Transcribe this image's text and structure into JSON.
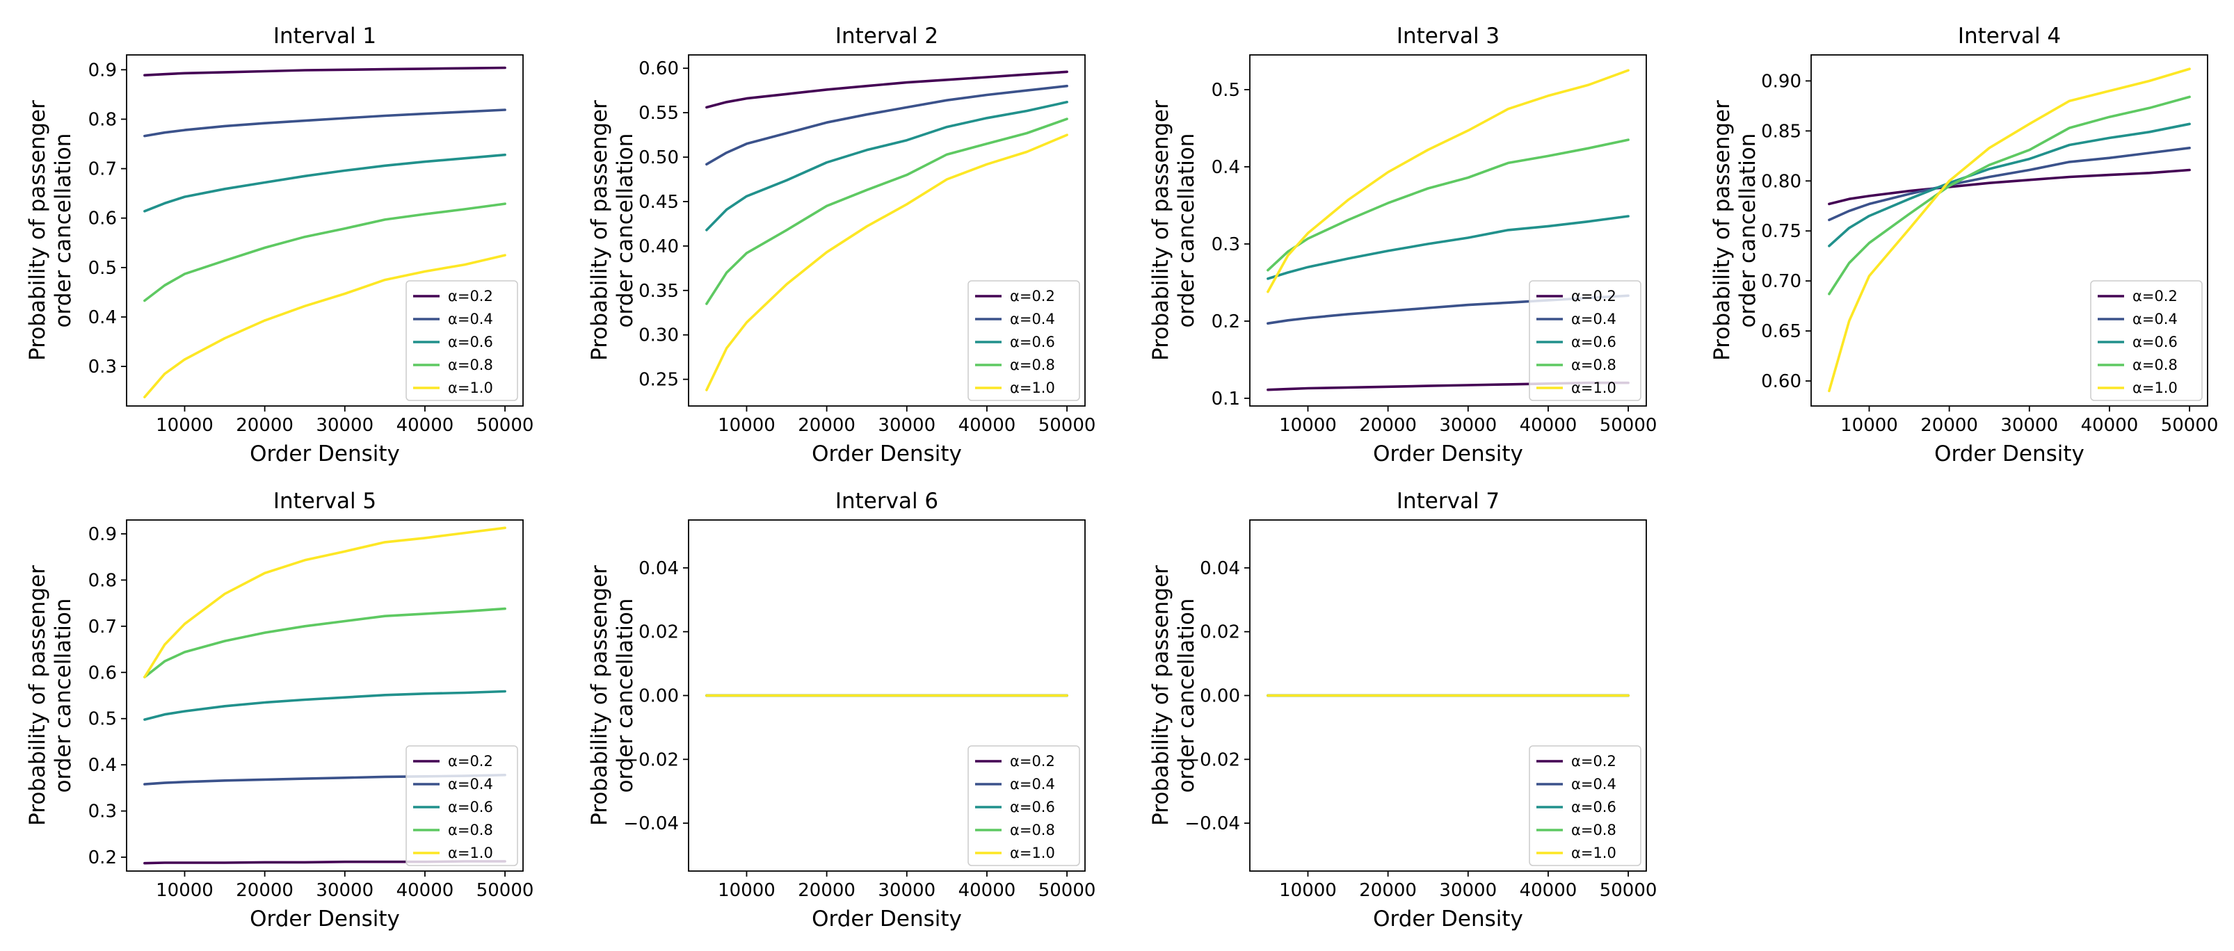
{
  "figure": {
    "xlabel": "Order Density",
    "ylabel_line1": "Probability of passenger",
    "ylabel_line2": "order cancellation"
  },
  "chart_data": [
    {
      "type": "line",
      "title": "Interval 1",
      "xlabel": "Order Density",
      "ylabel": "Probability of passenger order cancellation",
      "xlim": [
        2750,
        52250
      ],
      "ylim": [
        0.22,
        0.93
      ],
      "xticks": [
        10000,
        20000,
        30000,
        40000,
        50000
      ],
      "xtick_labels": [
        "10000",
        "20000",
        "30000",
        "40000",
        "50000"
      ],
      "yticks": [
        0.3,
        0.4,
        0.5,
        0.6,
        0.7,
        0.8,
        0.9
      ],
      "ytick_labels": [
        "0.3",
        "0.4",
        "0.5",
        "0.6",
        "0.7",
        "0.8",
        "0.9"
      ],
      "x": [
        5000,
        7500,
        10000,
        15000,
        20000,
        25000,
        30000,
        35000,
        40000,
        45000,
        50000
      ],
      "series": [
        {
          "name": "α=0.2",
          "color": "#440154",
          "values": [
            0.889,
            0.891,
            0.893,
            0.895,
            0.897,
            0.899,
            0.9,
            0.901,
            0.902,
            0.903,
            0.904
          ]
        },
        {
          "name": "α=0.4",
          "color": "#3b528b",
          "values": [
            0.766,
            0.773,
            0.778,
            0.786,
            0.792,
            0.797,
            0.802,
            0.807,
            0.811,
            0.815,
            0.819
          ]
        },
        {
          "name": "α=0.6",
          "color": "#21918c",
          "values": [
            0.614,
            0.63,
            0.643,
            0.659,
            0.672,
            0.685,
            0.696,
            0.706,
            0.714,
            0.721,
            0.728
          ]
        },
        {
          "name": "α=0.8",
          "color": "#5ec962",
          "values": [
            0.433,
            0.464,
            0.487,
            0.514,
            0.54,
            0.562,
            0.579,
            0.597,
            0.608,
            0.618,
            0.629
          ]
        },
        {
          "name": "α=1.0",
          "color": "#fde725",
          "values": [
            0.238,
            0.285,
            0.314,
            0.357,
            0.393,
            0.422,
            0.447,
            0.475,
            0.492,
            0.506,
            0.525
          ]
        }
      ],
      "legend_position": "lower right"
    },
    {
      "type": "line",
      "title": "Interval 2",
      "xlabel": "Order Density",
      "ylabel": "Probability of passenger order cancellation",
      "xlim": [
        2750,
        52250
      ],
      "ylim": [
        0.22,
        0.615
      ],
      "xticks": [
        10000,
        20000,
        30000,
        40000,
        50000
      ],
      "xtick_labels": [
        "10000",
        "20000",
        "30000",
        "40000",
        "50000"
      ],
      "yticks": [
        0.25,
        0.3,
        0.35,
        0.4,
        0.45,
        0.5,
        0.55,
        0.6
      ],
      "ytick_labels": [
        "0.25",
        "0.30",
        "0.35",
        "0.40",
        "0.45",
        "0.50",
        "0.55",
        "0.60"
      ],
      "x": [
        5000,
        7500,
        10000,
        15000,
        20000,
        25000,
        30000,
        35000,
        40000,
        45000,
        50000
      ],
      "series": [
        {
          "name": "α=0.2",
          "color": "#440154",
          "values": [
            0.556,
            0.562,
            0.566,
            0.571,
            0.576,
            0.58,
            0.584,
            0.587,
            0.59,
            0.593,
            0.596
          ]
        },
        {
          "name": "α=0.4",
          "color": "#3b528b",
          "values": [
            0.492,
            0.505,
            0.515,
            0.527,
            0.539,
            0.548,
            0.556,
            0.564,
            0.57,
            0.575,
            0.58
          ]
        },
        {
          "name": "α=0.6",
          "color": "#21918c",
          "values": [
            0.418,
            0.441,
            0.456,
            0.474,
            0.494,
            0.508,
            0.519,
            0.534,
            0.544,
            0.552,
            0.562
          ]
        },
        {
          "name": "α=0.8",
          "color": "#5ec962",
          "values": [
            0.335,
            0.37,
            0.392,
            0.418,
            0.445,
            0.463,
            0.48,
            0.503,
            0.515,
            0.527,
            0.543
          ]
        },
        {
          "name": "α=1.0",
          "color": "#fde725",
          "values": [
            0.238,
            0.285,
            0.314,
            0.357,
            0.393,
            0.422,
            0.447,
            0.475,
            0.492,
            0.506,
            0.525
          ]
        }
      ],
      "legend_position": "lower right"
    },
    {
      "type": "line",
      "title": "Interval 3",
      "xlabel": "Order Density",
      "ylabel": "Probability of passenger order cancellation",
      "xlim": [
        2750,
        52250
      ],
      "ylim": [
        0.09,
        0.545
      ],
      "xticks": [
        10000,
        20000,
        30000,
        40000,
        50000
      ],
      "xtick_labels": [
        "10000",
        "20000",
        "30000",
        "40000",
        "50000"
      ],
      "yticks": [
        0.1,
        0.2,
        0.3,
        0.4,
        0.5
      ],
      "ytick_labels": [
        "0.1",
        "0.2",
        "0.3",
        "0.4",
        "0.5"
      ],
      "x": [
        5000,
        7500,
        10000,
        15000,
        20000,
        25000,
        30000,
        35000,
        40000,
        45000,
        50000
      ],
      "series": [
        {
          "name": "α=0.2",
          "color": "#440154",
          "values": [
            0.111,
            0.112,
            0.113,
            0.114,
            0.115,
            0.116,
            0.117,
            0.118,
            0.119,
            0.12,
            0.12
          ]
        },
        {
          "name": "α=0.4",
          "color": "#3b528b",
          "values": [
            0.197,
            0.201,
            0.204,
            0.209,
            0.213,
            0.217,
            0.221,
            0.224,
            0.227,
            0.23,
            0.233
          ]
        },
        {
          "name": "α=0.6",
          "color": "#21918c",
          "values": [
            0.255,
            0.263,
            0.27,
            0.281,
            0.291,
            0.3,
            0.308,
            0.318,
            0.323,
            0.329,
            0.336
          ]
        },
        {
          "name": "α=0.8",
          "color": "#5ec962",
          "values": [
            0.266,
            0.29,
            0.307,
            0.331,
            0.353,
            0.372,
            0.386,
            0.405,
            0.414,
            0.424,
            0.435
          ]
        },
        {
          "name": "α=1.0",
          "color": "#fde725",
          "values": [
            0.238,
            0.285,
            0.314,
            0.357,
            0.393,
            0.422,
            0.447,
            0.475,
            0.492,
            0.506,
            0.525
          ]
        }
      ],
      "legend_position": "lower right"
    },
    {
      "type": "line",
      "title": "Interval 4",
      "xlabel": "Order Density",
      "ylabel": "Probability of passenger order cancellation",
      "xlim": [
        2750,
        52250
      ],
      "ylim": [
        0.575,
        0.926
      ],
      "xticks": [
        10000,
        20000,
        30000,
        40000,
        50000
      ],
      "xtick_labels": [
        "10000",
        "20000",
        "30000",
        "40000",
        "50000"
      ],
      "yticks": [
        0.6,
        0.65,
        0.7,
        0.75,
        0.8,
        0.85,
        0.9
      ],
      "ytick_labels": [
        "0.60",
        "0.65",
        "0.70",
        "0.75",
        "0.80",
        "0.85",
        "0.90"
      ],
      "x": [
        5000,
        7500,
        10000,
        15000,
        20000,
        25000,
        30000,
        35000,
        40000,
        45000,
        50000
      ],
      "series": [
        {
          "name": "α=0.2",
          "color": "#440154",
          "values": [
            0.777,
            0.782,
            0.785,
            0.79,
            0.794,
            0.798,
            0.801,
            0.804,
            0.806,
            0.808,
            0.811
          ]
        },
        {
          "name": "α=0.4",
          "color": "#3b528b",
          "values": [
            0.761,
            0.77,
            0.777,
            0.787,
            0.796,
            0.804,
            0.811,
            0.819,
            0.823,
            0.828,
            0.833
          ]
        },
        {
          "name": "α=0.6",
          "color": "#21918c",
          "values": [
            0.735,
            0.753,
            0.765,
            0.782,
            0.798,
            0.812,
            0.822,
            0.836,
            0.843,
            0.849,
            0.857
          ]
        },
        {
          "name": "α=0.8",
          "color": "#5ec962",
          "values": [
            0.687,
            0.718,
            0.738,
            0.767,
            0.795,
            0.816,
            0.831,
            0.853,
            0.864,
            0.873,
            0.884
          ]
        },
        {
          "name": "α=1.0",
          "color": "#fde725",
          "values": [
            0.59,
            0.66,
            0.705,
            0.752,
            0.8,
            0.833,
            0.857,
            0.88,
            0.89,
            0.9,
            0.912
          ]
        }
      ],
      "legend_position": "lower right"
    },
    {
      "type": "line",
      "title": "Interval 5",
      "xlabel": "Order Density",
      "ylabel": "Probability of passenger order cancellation",
      "xlim": [
        2750,
        52250
      ],
      "ylim": [
        0.17,
        0.93
      ],
      "xticks": [
        10000,
        20000,
        30000,
        40000,
        50000
      ],
      "xtick_labels": [
        "10000",
        "20000",
        "30000",
        "40000",
        "50000"
      ],
      "yticks": [
        0.2,
        0.3,
        0.4,
        0.5,
        0.6,
        0.7,
        0.8,
        0.9
      ],
      "ytick_labels": [
        "0.2",
        "0.3",
        "0.4",
        "0.5",
        "0.6",
        "0.7",
        "0.8",
        "0.9"
      ],
      "x": [
        5000,
        7500,
        10000,
        15000,
        20000,
        25000,
        30000,
        35000,
        40000,
        45000,
        50000
      ],
      "series": [
        {
          "name": "α=0.2",
          "color": "#440154",
          "values": [
            0.187,
            0.188,
            0.188,
            0.188,
            0.189,
            0.189,
            0.19,
            0.19,
            0.19,
            0.191,
            0.191
          ]
        },
        {
          "name": "α=0.4",
          "color": "#3b528b",
          "values": [
            0.358,
            0.361,
            0.363,
            0.366,
            0.368,
            0.37,
            0.372,
            0.374,
            0.375,
            0.376,
            0.378
          ]
        },
        {
          "name": "α=0.6",
          "color": "#21918c",
          "values": [
            0.498,
            0.509,
            0.516,
            0.527,
            0.535,
            0.541,
            0.546,
            0.551,
            0.554,
            0.556,
            0.559
          ]
        },
        {
          "name": "α=0.8",
          "color": "#5ec962",
          "values": [
            0.59,
            0.624,
            0.644,
            0.668,
            0.686,
            0.7,
            0.711,
            0.722,
            0.727,
            0.732,
            0.738
          ]
        },
        {
          "name": "α=1.0",
          "color": "#fde725",
          "values": [
            0.59,
            0.66,
            0.705,
            0.77,
            0.815,
            0.843,
            0.862,
            0.882,
            0.891,
            0.902,
            0.913
          ]
        }
      ],
      "legend_position": "lower right"
    },
    {
      "type": "line",
      "title": "Interval 6",
      "xlabel": "Order Density",
      "ylabel": "Probability of passenger order cancellation",
      "xlim": [
        2750,
        52250
      ],
      "ylim": [
        -0.055,
        0.055
      ],
      "xticks": [
        10000,
        20000,
        30000,
        40000,
        50000
      ],
      "xtick_labels": [
        "10000",
        "20000",
        "30000",
        "40000",
        "50000"
      ],
      "yticks": [
        -0.04,
        -0.02,
        0.0,
        0.02,
        0.04
      ],
      "ytick_labels": [
        "−0.04",
        "−0.02",
        "0.00",
        "0.02",
        "0.04"
      ],
      "x": [
        5000,
        50000
      ],
      "series": [
        {
          "name": "α=0.2",
          "color": "#440154",
          "values": [
            0.0,
            0.0
          ]
        },
        {
          "name": "α=0.4",
          "color": "#3b528b",
          "values": [
            0.0,
            0.0
          ]
        },
        {
          "name": "α=0.6",
          "color": "#21918c",
          "values": [
            0.0,
            0.0
          ]
        },
        {
          "name": "α=0.8",
          "color": "#5ec962",
          "values": [
            0.0,
            0.0
          ]
        },
        {
          "name": "α=1.0",
          "color": "#fde725",
          "values": [
            0.0,
            0.0
          ]
        }
      ],
      "legend_position": "lower right"
    },
    {
      "type": "line",
      "title": "Interval 7",
      "xlabel": "Order Density",
      "ylabel": "Probability of passenger order cancellation",
      "xlim": [
        2750,
        52250
      ],
      "ylim": [
        -0.055,
        0.055
      ],
      "xticks": [
        10000,
        20000,
        30000,
        40000,
        50000
      ],
      "xtick_labels": [
        "10000",
        "20000",
        "30000",
        "40000",
        "50000"
      ],
      "yticks": [
        -0.04,
        -0.02,
        0.0,
        0.02,
        0.04
      ],
      "ytick_labels": [
        "−0.04",
        "−0.02",
        "0.00",
        "0.02",
        "0.04"
      ],
      "x": [
        5000,
        50000
      ],
      "series": [
        {
          "name": "α=0.2",
          "color": "#440154",
          "values": [
            0.0,
            0.0
          ]
        },
        {
          "name": "α=0.4",
          "color": "#3b528b",
          "values": [
            0.0,
            0.0
          ]
        },
        {
          "name": "α=0.6",
          "color": "#21918c",
          "values": [
            0.0,
            0.0
          ]
        },
        {
          "name": "α=0.8",
          "color": "#5ec962",
          "values": [
            0.0,
            0.0
          ]
        },
        {
          "name": "α=1.0",
          "color": "#fde725",
          "values": [
            0.0,
            0.0
          ]
        }
      ],
      "legend_position": "lower right"
    }
  ]
}
